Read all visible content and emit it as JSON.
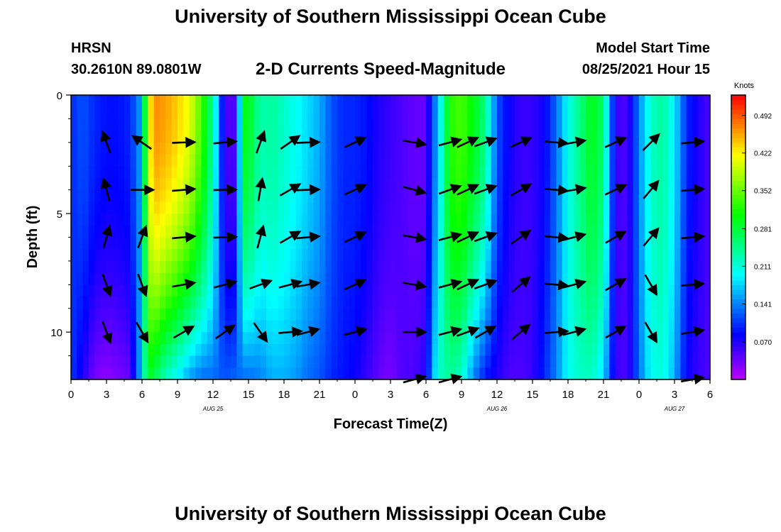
{
  "header": {
    "title": "University of Southern Mississippi Ocean Cube",
    "station": "HRSN",
    "coords": "30.2610N  89.0801W",
    "subtitle": "2-D Currents Speed-Magnitude",
    "start_label": "Model Start Time",
    "start_value": "08/25/2021 Hour 15"
  },
  "footer": {
    "title": "University of Southern Mississippi Ocean Cube"
  },
  "chart_data": {
    "type": "heatmap",
    "title": "2-D Currents Speed-Magnitude",
    "xlabel": "Forecast Time(Z)",
    "ylabel": "Depth (ft)",
    "x_ticks": [
      "0",
      "3",
      "6",
      "9",
      "12",
      "15",
      "18",
      "21",
      "0",
      "3",
      "6",
      "9",
      "12",
      "15",
      "18",
      "21",
      "0",
      "3",
      "6"
    ],
    "x_range_hours": [
      0,
      54
    ],
    "date_labels": [
      {
        "text": "AUG 25",
        "hour": 12
      },
      {
        "text": "AUG 26",
        "hour": 36
      },
      {
        "text": "AUG 27",
        "hour": 51
      }
    ],
    "y_ticks": [
      0,
      5,
      10
    ],
    "y_range_ft": [
      0,
      12
    ],
    "colorbar": {
      "unit": "Knots",
      "range": [
        0.0,
        0.53
      ],
      "tick_labels": [
        "0.492",
        "0.422",
        "0.352",
        "0.281",
        "0.211",
        "0.141",
        "0.070"
      ],
      "tick_values": [
        0.492,
        0.422,
        0.352,
        0.281,
        0.211,
        0.141,
        0.07
      ]
    },
    "speed_profile": {
      "hours": [
        0,
        1,
        2,
        3,
        4,
        5,
        6,
        6.5,
        7,
        8,
        9,
        10,
        11,
        12,
        13,
        14,
        14.5,
        15,
        16,
        17,
        18,
        19,
        20,
        21,
        22,
        23,
        24,
        25,
        26,
        27,
        28,
        29,
        30,
        31,
        32,
        33,
        34,
        35,
        36,
        37,
        38,
        39,
        40,
        41,
        42,
        43,
        44,
        45,
        46,
        47,
        48,
        49,
        50,
        51,
        52,
        53,
        54
      ],
      "surface_knots": [
        0.1,
        0.12,
        0.1,
        0.09,
        0.09,
        0.1,
        0.16,
        0.4,
        0.47,
        0.46,
        0.44,
        0.41,
        0.34,
        0.24,
        0.05,
        0.05,
        0.3,
        0.3,
        0.23,
        0.24,
        0.22,
        0.2,
        0.18,
        0.16,
        0.12,
        0.1,
        0.1,
        0.09,
        0.07,
        0.06,
        0.05,
        0.04,
        0.04,
        0.17,
        0.32,
        0.34,
        0.3,
        0.25,
        0.12,
        0.08,
        0.06,
        0.06,
        0.08,
        0.13,
        0.2,
        0.25,
        0.3,
        0.26,
        0.06,
        0.05,
        0.14,
        0.22,
        0.24,
        0.19,
        0.1,
        0.07,
        0.05
      ],
      "bottom_knots": [
        0.11,
        0.07,
        0.03,
        0.02,
        0.03,
        0.04,
        0.18,
        0.3,
        0.27,
        0.22,
        0.19,
        0.15,
        0.13,
        0.13,
        0.12,
        0.13,
        0.13,
        0.13,
        0.14,
        0.16,
        0.16,
        0.15,
        0.13,
        0.12,
        0.1,
        0.09,
        0.08,
        0.06,
        0.04,
        0.03,
        0.05,
        0.05,
        0.07,
        0.22,
        0.24,
        0.22,
        0.14,
        0.09,
        0.07,
        0.05,
        0.05,
        0.06,
        0.1,
        0.14,
        0.2,
        0.22,
        0.22,
        0.18,
        0.06,
        0.05,
        0.13,
        0.2,
        0.21,
        0.16,
        0.08,
        0.06,
        0.05
      ]
    },
    "vectors": {
      "hours": [
        3,
        6,
        9.5,
        13,
        16,
        18.5,
        20,
        24,
        29,
        32,
        33.5,
        35,
        38,
        41,
        42.5,
        46,
        49,
        52.5
      ],
      "depths_ft": [
        2,
        4,
        6,
        8,
        10,
        12
      ],
      "angles_deg": [
        [
          110,
          145,
          2,
          5,
          70,
          35,
          2,
          25,
          -10,
          15,
          25,
          20,
          25,
          -5,
          10,
          25,
          45,
          5
        ],
        [
          105,
          0,
          5,
          1,
          80,
          30,
          2,
          25,
          -15,
          20,
          25,
          20,
          30,
          -5,
          10,
          25,
          50,
          5
        ],
        [
          75,
          70,
          5,
          2,
          75,
          30,
          5,
          25,
          -10,
          15,
          25,
          20,
          35,
          -5,
          15,
          30,
          50,
          5
        ],
        [
          -70,
          -70,
          10,
          15,
          20,
          15,
          10,
          25,
          -10,
          15,
          25,
          20,
          40,
          -5,
          15,
          30,
          -60,
          5
        ],
        [
          -70,
          -60,
          30,
          35,
          -55,
          5,
          15,
          15,
          0,
          15,
          20,
          30,
          40,
          5,
          15,
          30,
          -60,
          10
        ],
        [
          null,
          null,
          null,
          null,
          null,
          null,
          null,
          null,
          15,
          15,
          null,
          null,
          null,
          null,
          null,
          null,
          null,
          10
        ]
      ]
    }
  }
}
